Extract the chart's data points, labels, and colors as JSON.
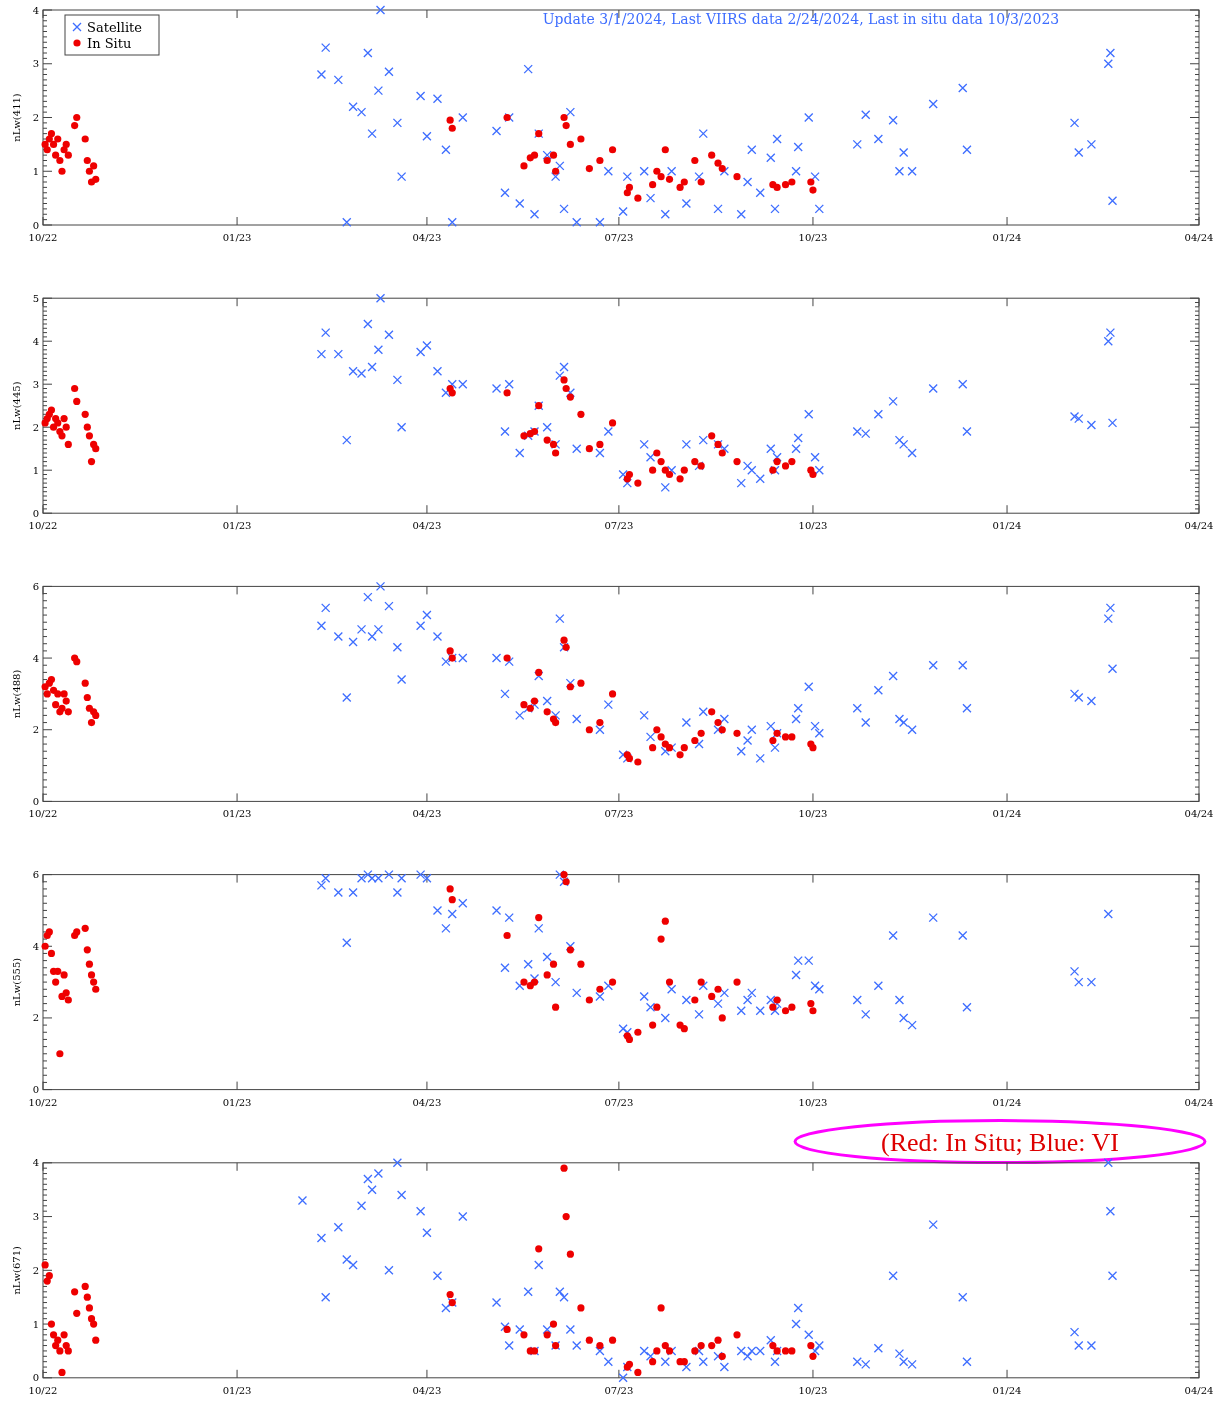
{
  "chart_data": [
    {
      "type": "scatter",
      "title": "Update 3/1/2024, Last VIIRS data 2/24/2024, Last in situ data 10/3/2023",
      "ylabel": "nLw(411)",
      "legend": "top left",
      "xlim": [
        "2022-10-01",
        "2024-04-01"
      ],
      "xticks": [
        {
          "value": "2022-10-01",
          "label": "10/22"
        },
        {
          "value": "2023-01-01",
          "label": "01/23"
        },
        {
          "value": "2023-04-01",
          "label": "04/23"
        },
        {
          "value": "2023-07-01",
          "label": "07/23"
        },
        {
          "value": "2023-10-01",
          "label": "10/23"
        },
        {
          "value": "2024-01-01",
          "label": "01/24"
        },
        {
          "value": "2024-04-01",
          "label": "04/24"
        }
      ],
      "ylim": [
        0,
        4
      ],
      "yticks": [
        0,
        1,
        2,
        3,
        4
      ],
      "series": [
        {
          "name": "Satellite",
          "color": "#3d6dff",
          "marker": "cross",
          "x": [
            "2023-02-10",
            "2023-02-12",
            "2023-02-18",
            "2023-02-22",
            "2023-02-25",
            "2023-03-01",
            "2023-03-04",
            "2023-03-06",
            "2023-03-09",
            "2023-03-10",
            "2023-03-14",
            "2023-03-18",
            "2023-03-20",
            "2023-03-29",
            "2023-04-01",
            "2023-04-06",
            "2023-04-10",
            "2023-04-13",
            "2023-04-18",
            "2023-05-04",
            "2023-05-08",
            "2023-05-10",
            "2023-05-15",
            "2023-05-19",
            "2023-05-22",
            "2023-05-24",
            "2023-05-28",
            "2023-06-01",
            "2023-06-03",
            "2023-06-05",
            "2023-06-08",
            "2023-06-11",
            "2023-06-22",
            "2023-06-26",
            "2023-07-03",
            "2023-07-05",
            "2023-07-13",
            "2023-07-16",
            "2023-07-23",
            "2023-07-26",
            "2023-08-02",
            "2023-08-08",
            "2023-08-10",
            "2023-08-17",
            "2023-08-20",
            "2023-08-28",
            "2023-08-31",
            "2023-09-02",
            "2023-09-06",
            "2023-09-11",
            "2023-09-13",
            "2023-09-14",
            "2023-09-23",
            "2023-09-24",
            "2023-09-29",
            "2023-10-02",
            "2023-10-04",
            "2023-10-22",
            "2023-10-26",
            "2023-11-01",
            "2023-11-08",
            "2023-11-11",
            "2023-11-13",
            "2023-11-17",
            "2023-11-27",
            "2023-12-11",
            "2023-12-13",
            "2024-02-02",
            "2024-02-04",
            "2024-02-10",
            "2024-02-18",
            "2024-02-19",
            "2024-02-20"
          ],
          "values": [
            2.8,
            3.3,
            2.7,
            0.05,
            2.2,
            2.1,
            3.2,
            1.7,
            2.5,
            4.0,
            2.85,
            1.9,
            0.9,
            2.4,
            1.65,
            2.35,
            1.4,
            0.05,
            2.0,
            1.75,
            0.6,
            2.0,
            0.4,
            2.9,
            0.2,
            1.7,
            1.3,
            0.9,
            1.1,
            0.3,
            2.1,
            0.05,
            0.05,
            1.0,
            0.25,
            0.9,
            1.0,
            0.5,
            0.2,
            1.0,
            0.4,
            0.9,
            1.7,
            0.3,
            1.0,
            0.2,
            0.8,
            1.4,
            0.6,
            1.25,
            0.3,
            1.6,
            1.0,
            1.45,
            2.0,
            0.9,
            0.3,
            1.5,
            2.05,
            1.6,
            1.95,
            1.0,
            1.35,
            1.0,
            2.25,
            2.55,
            1.4,
            1.9,
            1.35,
            1.5,
            3.0,
            3.2,
            0.45
          ]
        },
        {
          "name": "In Situ",
          "color": "#ee0000",
          "marker": "circle",
          "x": [
            "2022-10-02",
            "2022-10-03",
            "2022-10-04",
            "2022-10-05",
            "2022-10-06",
            "2022-10-07",
            "2022-10-08",
            "2022-10-09",
            "2022-10-10",
            "2022-10-11",
            "2022-10-12",
            "2022-10-13",
            "2022-10-16",
            "2022-10-17",
            "2022-10-21",
            "2022-10-22",
            "2022-10-23",
            "2022-10-24",
            "2022-10-25",
            "2022-10-26",
            "2023-04-12",
            "2023-04-13",
            "2023-05-09",
            "2023-05-17",
            "2023-05-20",
            "2023-05-22",
            "2023-05-24",
            "2023-05-28",
            "2023-05-31",
            "2023-06-01",
            "2023-06-05",
            "2023-06-06",
            "2023-06-08",
            "2023-06-13",
            "2023-06-17",
            "2023-06-22",
            "2023-06-28",
            "2023-07-05",
            "2023-07-06",
            "2023-07-10",
            "2023-07-17",
            "2023-07-19",
            "2023-07-21",
            "2023-07-23",
            "2023-07-25",
            "2023-07-30",
            "2023-08-01",
            "2023-08-06",
            "2023-08-09",
            "2023-08-14",
            "2023-08-17",
            "2023-08-19",
            "2023-08-26",
            "2023-09-12",
            "2023-09-14",
            "2023-09-18",
            "2023-09-21",
            "2023-09-30",
            "2023-10-01"
          ],
          "values": [
            1.5,
            1.4,
            1.6,
            1.7,
            1.5,
            1.3,
            1.6,
            1.2,
            1.0,
            1.4,
            1.5,
            1.3,
            1.85,
            2.0,
            1.6,
            1.2,
            1.0,
            0.8,
            1.1,
            0.85,
            1.95,
            1.8,
            2.0,
            1.1,
            1.25,
            1.3,
            1.7,
            1.2,
            1.3,
            1.0,
            2.0,
            1.85,
            1.5,
            1.6,
            1.05,
            1.2,
            1.4,
            0.6,
            0.7,
            0.5,
            0.75,
            1.0,
            0.9,
            1.4,
            0.85,
            0.7,
            0.8,
            1.2,
            0.8,
            1.3,
            1.15,
            1.05,
            0.9,
            0.75,
            0.7,
            0.75,
            0.8,
            0.8,
            0.65
          ]
        }
      ]
    },
    {
      "type": "scatter",
      "ylabel": "nLw(445)",
      "xlim": [
        "2022-10-01",
        "2024-04-01"
      ],
      "xticks": [
        {
          "value": "2022-10-01",
          "label": "10/22"
        },
        {
          "value": "2023-01-01",
          "label": "01/23"
        },
        {
          "value": "2023-04-01",
          "label": "04/23"
        },
        {
          "value": "2023-07-01",
          "label": "07/23"
        },
        {
          "value": "2023-10-01",
          "label": "10/23"
        },
        {
          "value": "2024-01-01",
          "label": "01/24"
        },
        {
          "value": "2024-04-01",
          "label": "04/24"
        }
      ],
      "ylim": [
        0,
        5
      ],
      "yticks": [
        0,
        1,
        2,
        3,
        4,
        5
      ],
      "series": [
        {
          "color": "#3d6dff",
          "marker": "cross",
          "x": [
            "2023-02-10",
            "2023-02-12",
            "2023-02-18",
            "2023-02-22",
            "2023-02-25",
            "2023-03-01",
            "2023-03-04",
            "2023-03-06",
            "2023-03-09",
            "2023-03-10",
            "2023-03-14",
            "2023-03-18",
            "2023-03-20",
            "2023-03-29",
            "2023-04-01",
            "2023-04-06",
            "2023-04-10",
            "2023-04-13",
            "2023-04-18",
            "2023-05-04",
            "2023-05-08",
            "2023-05-10",
            "2023-05-15",
            "2023-05-19",
            "2023-05-22",
            "2023-05-24",
            "2023-05-28",
            "2023-06-01",
            "2023-06-03",
            "2023-06-05",
            "2023-06-08",
            "2023-06-11",
            "2023-06-22",
            "2023-06-26",
            "2023-07-03",
            "2023-07-05",
            "2023-07-13",
            "2023-07-16",
            "2023-07-23",
            "2023-07-26",
            "2023-08-02",
            "2023-08-08",
            "2023-08-10",
            "2023-08-17",
            "2023-08-20",
            "2023-08-28",
            "2023-08-31",
            "2023-09-02",
            "2023-09-06",
            "2023-09-11",
            "2023-09-13",
            "2023-09-14",
            "2023-09-23",
            "2023-09-24",
            "2023-09-29",
            "2023-10-02",
            "2023-10-04",
            "2023-10-22",
            "2023-10-26",
            "2023-11-01",
            "2023-11-08",
            "2023-11-11",
            "2023-11-13",
            "2023-11-17",
            "2023-11-27",
            "2023-12-11",
            "2023-12-13",
            "2024-02-02",
            "2024-02-04",
            "2024-02-10",
            "2024-02-18",
            "2024-02-19",
            "2024-02-20"
          ],
          "values": [
            3.7,
            4.2,
            3.7,
            1.7,
            3.3,
            3.25,
            4.4,
            3.4,
            3.8,
            5.0,
            4.15,
            3.1,
            2.0,
            3.75,
            3.9,
            3.3,
            2.8,
            3.0,
            3.0,
            2.9,
            1.9,
            3.0,
            1.4,
            1.8,
            1.9,
            2.5,
            2.0,
            1.6,
            3.2,
            3.4,
            2.8,
            1.5,
            1.4,
            1.9,
            0.9,
            0.7,
            1.6,
            1.3,
            0.6,
            1.0,
            1.6,
            1.1,
            1.7,
            1.6,
            1.5,
            0.7,
            1.1,
            1.0,
            0.8,
            1.5,
            1.0,
            1.3,
            1.5,
            1.75,
            2.3,
            1.3,
            1.0,
            1.9,
            1.85,
            2.3,
            2.6,
            1.7,
            1.6,
            1.4,
            2.9,
            3.0,
            1.9,
            2.25,
            2.2,
            2.05,
            4.0,
            4.2,
            2.1
          ]
        },
        {
          "color": "#ee0000",
          "marker": "circle",
          "x": [
            "2022-10-02",
            "2022-10-03",
            "2022-10-04",
            "2022-10-05",
            "2022-10-06",
            "2022-10-07",
            "2022-10-08",
            "2022-10-09",
            "2022-10-10",
            "2022-10-11",
            "2022-10-12",
            "2022-10-13",
            "2022-10-16",
            "2022-10-17",
            "2022-10-21",
            "2022-10-22",
            "2022-10-23",
            "2022-10-24",
            "2022-10-25",
            "2022-10-26",
            "2023-04-12",
            "2023-04-13",
            "2023-05-09",
            "2023-05-17",
            "2023-05-20",
            "2023-05-22",
            "2023-05-24",
            "2023-05-28",
            "2023-05-31",
            "2023-06-01",
            "2023-06-05",
            "2023-06-06",
            "2023-06-08",
            "2023-06-13",
            "2023-06-17",
            "2023-06-22",
            "2023-06-28",
            "2023-07-05",
            "2023-07-06",
            "2023-07-10",
            "2023-07-17",
            "2023-07-19",
            "2023-07-21",
            "2023-07-23",
            "2023-07-25",
            "2023-07-30",
            "2023-08-01",
            "2023-08-06",
            "2023-08-09",
            "2023-08-14",
            "2023-08-17",
            "2023-08-19",
            "2023-08-26",
            "2023-09-12",
            "2023-09-14",
            "2023-09-18",
            "2023-09-21",
            "2023-09-30",
            "2023-10-01"
          ],
          "values": [
            2.1,
            2.2,
            2.3,
            2.4,
            2.0,
            2.2,
            2.1,
            1.9,
            1.8,
            2.2,
            2.0,
            1.6,
            2.9,
            2.6,
            2.3,
            2.0,
            1.8,
            1.2,
            1.6,
            1.5,
            2.9,
            2.8,
            2.8,
            1.8,
            1.85,
            1.9,
            2.5,
            1.7,
            1.6,
            1.4,
            3.1,
            2.9,
            2.7,
            2.3,
            1.5,
            1.6,
            2.1,
            0.8,
            0.9,
            0.7,
            1.0,
            1.4,
            1.2,
            1.0,
            0.9,
            0.8,
            1.0,
            1.2,
            1.1,
            1.8,
            1.6,
            1.4,
            1.2,
            1.0,
            1.2,
            1.1,
            1.2,
            1.0,
            0.9
          ]
        }
      ]
    },
    {
      "type": "scatter",
      "ylabel": "nLw(488)",
      "xlim": [
        "2022-10-01",
        "2024-04-01"
      ],
      "xticks": [
        {
          "value": "2022-10-01",
          "label": "10/22"
        },
        {
          "value": "2023-01-01",
          "label": "01/23"
        },
        {
          "value": "2023-04-01",
          "label": "04/23"
        },
        {
          "value": "2023-07-01",
          "label": "07/23"
        },
        {
          "value": "2023-10-01",
          "label": "10/23"
        },
        {
          "value": "2024-01-01",
          "label": "01/24"
        },
        {
          "value": "2024-04-01",
          "label": "04/24"
        }
      ],
      "ylim": [
        0,
        6
      ],
      "yticks": [
        0,
        2,
        4,
        6
      ],
      "series": [
        {
          "color": "#3d6dff",
          "marker": "cross",
          "x": [
            "2023-02-10",
            "2023-02-12",
            "2023-02-18",
            "2023-02-22",
            "2023-02-25",
            "2023-03-01",
            "2023-03-04",
            "2023-03-06",
            "2023-03-09",
            "2023-03-10",
            "2023-03-14",
            "2023-03-18",
            "2023-03-20",
            "2023-03-29",
            "2023-04-01",
            "2023-04-06",
            "2023-04-10",
            "2023-04-13",
            "2023-04-18",
            "2023-05-04",
            "2023-05-08",
            "2023-05-10",
            "2023-05-15",
            "2023-05-19",
            "2023-05-22",
            "2023-05-24",
            "2023-05-28",
            "2023-06-01",
            "2023-06-03",
            "2023-06-05",
            "2023-06-08",
            "2023-06-11",
            "2023-06-22",
            "2023-06-26",
            "2023-07-03",
            "2023-07-05",
            "2023-07-13",
            "2023-07-16",
            "2023-07-23",
            "2023-07-26",
            "2023-08-02",
            "2023-08-08",
            "2023-08-10",
            "2023-08-17",
            "2023-08-20",
            "2023-08-28",
            "2023-08-31",
            "2023-09-02",
            "2023-09-06",
            "2023-09-11",
            "2023-09-13",
            "2023-09-14",
            "2023-09-23",
            "2023-09-24",
            "2023-09-29",
            "2023-10-02",
            "2023-10-04",
            "2023-10-22",
            "2023-10-26",
            "2023-11-01",
            "2023-11-08",
            "2023-11-11",
            "2023-11-13",
            "2023-11-17",
            "2023-11-27",
            "2023-12-11",
            "2023-12-13",
            "2024-02-02",
            "2024-02-04",
            "2024-02-10",
            "2024-02-18",
            "2024-02-19",
            "2024-02-20"
          ],
          "values": [
            4.9,
            5.4,
            4.6,
            2.9,
            4.45,
            4.8,
            5.7,
            4.6,
            4.8,
            6.0,
            5.45,
            4.3,
            3.4,
            4.9,
            5.2,
            4.6,
            3.9,
            4.0,
            4.0,
            4.0,
            3.0,
            3.9,
            2.4,
            2.6,
            2.7,
            3.5,
            2.8,
            2.4,
            5.1,
            4.3,
            3.3,
            2.3,
            2.0,
            2.7,
            1.3,
            1.2,
            2.4,
            1.8,
            1.4,
            1.5,
            2.2,
            1.6,
            2.5,
            2.0,
            2.3,
            1.4,
            1.7,
            2.0,
            1.2,
            2.1,
            1.5,
            1.9,
            2.3,
            2.6,
            3.2,
            2.1,
            1.9,
            2.6,
            2.2,
            3.1,
            3.5,
            2.3,
            2.2,
            2.0,
            3.8,
            3.8,
            2.6,
            3.0,
            2.9,
            2.8,
            5.1,
            5.4,
            3.7
          ]
        },
        {
          "color": "#ee0000",
          "marker": "circle",
          "x": [
            "2022-10-02",
            "2022-10-03",
            "2022-10-04",
            "2022-10-05",
            "2022-10-06",
            "2022-10-07",
            "2022-10-08",
            "2022-10-09",
            "2022-10-10",
            "2022-10-11",
            "2022-10-12",
            "2022-10-13",
            "2022-10-16",
            "2022-10-17",
            "2022-10-21",
            "2022-10-22",
            "2022-10-23",
            "2022-10-24",
            "2022-10-25",
            "2022-10-26",
            "2023-04-12",
            "2023-04-13",
            "2023-05-09",
            "2023-05-17",
            "2023-05-20",
            "2023-05-22",
            "2023-05-24",
            "2023-05-28",
            "2023-05-31",
            "2023-06-01",
            "2023-06-05",
            "2023-06-06",
            "2023-06-08",
            "2023-06-13",
            "2023-06-17",
            "2023-06-22",
            "2023-06-28",
            "2023-07-05",
            "2023-07-06",
            "2023-07-10",
            "2023-07-17",
            "2023-07-19",
            "2023-07-21",
            "2023-07-23",
            "2023-07-25",
            "2023-07-30",
            "2023-08-01",
            "2023-08-06",
            "2023-08-09",
            "2023-08-14",
            "2023-08-17",
            "2023-08-19",
            "2023-08-26",
            "2023-09-12",
            "2023-09-14",
            "2023-09-18",
            "2023-09-21",
            "2023-09-30",
            "2023-10-01"
          ],
          "values": [
            3.2,
            3.0,
            3.3,
            3.4,
            3.1,
            2.7,
            3.0,
            2.5,
            2.6,
            3.0,
            2.8,
            2.5,
            4.0,
            3.9,
            3.3,
            2.9,
            2.6,
            2.2,
            2.5,
            2.4,
            4.2,
            4.0,
            4.0,
            2.7,
            2.6,
            2.8,
            3.6,
            2.5,
            2.3,
            2.2,
            4.5,
            4.3,
            3.2,
            3.3,
            2.0,
            2.2,
            3.0,
            1.3,
            1.2,
            1.1,
            1.5,
            2.0,
            1.8,
            1.6,
            1.5,
            1.3,
            1.5,
            1.7,
            1.9,
            2.5,
            2.2,
            2.0,
            1.9,
            1.7,
            1.9,
            1.8,
            1.8,
            1.6,
            1.5
          ]
        }
      ]
    },
    {
      "type": "scatter",
      "ylabel": "nLw(555)",
      "annotations": [
        "(Red: In Situ; Blue: VI"
      ],
      "xlim": [
        "2022-10-01",
        "2024-04-01"
      ],
      "xticks": [
        {
          "value": "2022-10-01",
          "label": "10/22"
        },
        {
          "value": "2023-01-01",
          "label": "01/23"
        },
        {
          "value": "2023-04-01",
          "label": "04/23"
        },
        {
          "value": "2023-07-01",
          "label": "07/23"
        },
        {
          "value": "2023-10-01",
          "label": "10/23"
        },
        {
          "value": "2024-01-01",
          "label": "01/24"
        },
        {
          "value": "2024-04-01",
          "label": "04/24"
        }
      ],
      "ylim": [
        0,
        6
      ],
      "yticks": [
        0,
        2,
        4,
        6
      ],
      "series": [
        {
          "color": "#3d6dff",
          "marker": "cross",
          "x": [
            "2023-02-10",
            "2023-02-12",
            "2023-02-18",
            "2023-02-22",
            "2023-02-25",
            "2023-03-01",
            "2023-03-04",
            "2023-03-06",
            "2023-03-09",
            "2023-03-14",
            "2023-03-18",
            "2023-03-20",
            "2023-03-29",
            "2023-04-01",
            "2023-04-06",
            "2023-04-10",
            "2023-04-13",
            "2023-04-18",
            "2023-05-04",
            "2023-05-08",
            "2023-05-10",
            "2023-05-15",
            "2023-05-19",
            "2023-05-22",
            "2023-05-24",
            "2023-05-28",
            "2023-06-01",
            "2023-06-03",
            "2023-06-05",
            "2023-06-08",
            "2023-06-11",
            "2023-06-22",
            "2023-06-26",
            "2023-07-03",
            "2023-07-05",
            "2023-07-13",
            "2023-07-16",
            "2023-07-23",
            "2023-07-26",
            "2023-08-02",
            "2023-08-08",
            "2023-08-10",
            "2023-08-17",
            "2023-08-20",
            "2023-08-28",
            "2023-08-31",
            "2023-09-02",
            "2023-09-06",
            "2023-09-11",
            "2023-09-13",
            "2023-09-14",
            "2023-09-23",
            "2023-09-24",
            "2023-09-29",
            "2023-10-02",
            "2023-10-04",
            "2023-10-22",
            "2023-10-26",
            "2023-11-01",
            "2023-11-08",
            "2023-11-11",
            "2023-11-13",
            "2023-11-17",
            "2023-11-27",
            "2023-12-11",
            "2023-12-13",
            "2024-02-02",
            "2024-02-04",
            "2024-02-10",
            "2024-02-18"
          ],
          "values": [
            5.7,
            5.9,
            5.5,
            4.1,
            5.5,
            5.9,
            6.0,
            5.9,
            5.9,
            6.0,
            5.5,
            5.9,
            6.0,
            5.9,
            5.0,
            4.5,
            4.9,
            5.2,
            5.0,
            3.4,
            4.8,
            2.9,
            3.5,
            3.1,
            4.5,
            3.7,
            3.0,
            6.0,
            5.8,
            4.0,
            2.7,
            2.6,
            2.9,
            1.7,
            1.6,
            2.6,
            2.3,
            2.0,
            2.8,
            2.5,
            2.1,
            2.9,
            2.4,
            2.7,
            2.2,
            2.5,
            2.7,
            2.2,
            2.5,
            2.2,
            2.4,
            3.2,
            3.6,
            3.6,
            2.9,
            2.8,
            2.5,
            2.1,
            2.9,
            4.3,
            2.5,
            2.0,
            1.8,
            4.8,
            4.3,
            2.3,
            3.3,
            3.0,
            3.0,
            4.9
          ]
        },
        {
          "color": "#ee0000",
          "marker": "circle",
          "x": [
            "2022-10-02",
            "2022-10-03",
            "2022-10-04",
            "2022-10-05",
            "2022-10-06",
            "2022-10-07",
            "2022-10-08",
            "2022-10-09",
            "2022-10-10",
            "2022-10-11",
            "2022-10-12",
            "2022-10-13",
            "2022-10-16",
            "2022-10-17",
            "2022-10-21",
            "2022-10-22",
            "2022-10-23",
            "2022-10-24",
            "2022-10-25",
            "2022-10-26",
            "2023-04-12",
            "2023-04-13",
            "2023-05-09",
            "2023-05-17",
            "2023-05-20",
            "2023-05-22",
            "2023-05-24",
            "2023-05-28",
            "2023-05-31",
            "2023-06-01",
            "2023-06-05",
            "2023-06-06",
            "2023-06-08",
            "2023-06-13",
            "2023-06-17",
            "2023-06-22",
            "2023-06-28",
            "2023-07-05",
            "2023-07-06",
            "2023-07-10",
            "2023-07-17",
            "2023-07-19",
            "2023-07-21",
            "2023-07-23",
            "2023-07-25",
            "2023-07-30",
            "2023-08-01",
            "2023-08-06",
            "2023-08-09",
            "2023-08-14",
            "2023-08-17",
            "2023-08-19",
            "2023-08-26",
            "2023-09-12",
            "2023-09-14",
            "2023-09-18",
            "2023-09-21",
            "2023-09-30",
            "2023-10-01"
          ],
          "values": [
            4.0,
            4.3,
            4.4,
            3.8,
            3.3,
            3.0,
            3.3,
            1.0,
            2.6,
            3.2,
            2.7,
            2.5,
            4.3,
            4.4,
            4.5,
            3.9,
            3.5,
            3.2,
            3.0,
            2.8,
            5.6,
            5.3,
            4.3,
            3.0,
            2.9,
            3.0,
            4.8,
            3.2,
            3.5,
            2.3,
            6.0,
            5.8,
            3.9,
            3.5,
            2.5,
            2.8,
            3.0,
            1.5,
            1.4,
            1.6,
            1.8,
            2.3,
            4.2,
            4.7,
            3.0,
            1.8,
            1.7,
            2.5,
            3.0,
            2.6,
            2.8,
            2.0,
            3.0,
            2.3,
            2.5,
            2.2,
            2.3,
            2.4,
            2.2
          ]
        }
      ]
    },
    {
      "type": "scatter",
      "ylabel": "nLw(671)",
      "xlim": [
        "2022-10-01",
        "2024-04-01"
      ],
      "xticks": [
        {
          "value": "2022-10-01",
          "label": "10/22"
        },
        {
          "value": "2023-01-01",
          "label": "01/23"
        },
        {
          "value": "2023-04-01",
          "label": "04/23"
        },
        {
          "value": "2023-07-01",
          "label": "07/23"
        },
        {
          "value": "2023-10-01",
          "label": "10/23"
        },
        {
          "value": "2024-01-01",
          "label": "01/24"
        },
        {
          "value": "2024-04-01",
          "label": "04/24"
        }
      ],
      "ylim": [
        0,
        4
      ],
      "yticks": [
        0,
        1,
        2,
        3,
        4
      ],
      "series": [
        {
          "color": "#3d6dff",
          "marker": "cross",
          "x": [
            "2023-02-01",
            "2023-02-10",
            "2023-02-12",
            "2023-02-18",
            "2023-02-22",
            "2023-02-25",
            "2023-03-01",
            "2023-03-04",
            "2023-03-06",
            "2023-03-09",
            "2023-03-14",
            "2023-03-18",
            "2023-03-20",
            "2023-03-29",
            "2023-04-01",
            "2023-04-06",
            "2023-04-10",
            "2023-04-13",
            "2023-04-18",
            "2023-05-04",
            "2023-05-08",
            "2023-05-10",
            "2023-05-15",
            "2023-05-19",
            "2023-05-22",
            "2023-05-24",
            "2023-05-28",
            "2023-06-01",
            "2023-06-03",
            "2023-06-05",
            "2023-06-08",
            "2023-06-11",
            "2023-06-22",
            "2023-06-26",
            "2023-07-03",
            "2023-07-05",
            "2023-07-13",
            "2023-07-16",
            "2023-07-23",
            "2023-07-26",
            "2023-08-02",
            "2023-08-08",
            "2023-08-10",
            "2023-08-17",
            "2023-08-20",
            "2023-08-28",
            "2023-08-31",
            "2023-09-02",
            "2023-09-06",
            "2023-09-11",
            "2023-09-13",
            "2023-09-14",
            "2023-09-23",
            "2023-09-24",
            "2023-09-29",
            "2023-10-02",
            "2023-10-04",
            "2023-10-22",
            "2023-10-26",
            "2023-11-01",
            "2023-11-08",
            "2023-11-11",
            "2023-11-13",
            "2023-11-17",
            "2023-11-27",
            "2023-12-11",
            "2023-12-13",
            "2024-02-02",
            "2024-02-04",
            "2024-02-10",
            "2024-02-18",
            "2024-02-19",
            "2024-02-20"
          ],
          "values": [
            3.3,
            2.6,
            1.5,
            2.8,
            2.2,
            2.1,
            3.2,
            3.7,
            3.5,
            3.8,
            2.0,
            4.0,
            3.4,
            3.1,
            2.7,
            1.9,
            1.3,
            1.4,
            3.0,
            1.4,
            0.95,
            0.6,
            0.9,
            1.6,
            0.5,
            2.1,
            0.9,
            0.6,
            1.6,
            1.5,
            0.9,
            0.6,
            0.5,
            0.3,
            0.0,
            0.2,
            0.5,
            0.4,
            0.3,
            0.5,
            0.2,
            0.5,
            0.3,
            0.4,
            0.2,
            0.5,
            0.4,
            0.5,
            0.5,
            0.7,
            0.3,
            0.5,
            1.0,
            1.3,
            0.8,
            0.5,
            0.6,
            0.3,
            0.25,
            0.55,
            1.9,
            0.45,
            0.3,
            0.25,
            2.85,
            1.5,
            0.3,
            0.85,
            0.6,
            0.6,
            4.0,
            3.1,
            1.9
          ]
        },
        {
          "color": "#ee0000",
          "marker": "circle",
          "x": [
            "2022-10-02",
            "2022-10-03",
            "2022-10-04",
            "2022-10-05",
            "2022-10-06",
            "2022-10-07",
            "2022-10-08",
            "2022-10-09",
            "2022-10-10",
            "2022-10-11",
            "2022-10-12",
            "2022-10-13",
            "2022-10-16",
            "2022-10-17",
            "2022-10-21",
            "2022-10-22",
            "2022-10-23",
            "2022-10-24",
            "2022-10-25",
            "2022-10-26",
            "2023-04-12",
            "2023-04-13",
            "2023-05-09",
            "2023-05-17",
            "2023-05-20",
            "2023-05-22",
            "2023-05-24",
            "2023-05-28",
            "2023-05-31",
            "2023-06-01",
            "2023-06-05",
            "2023-06-06",
            "2023-06-08",
            "2023-06-13",
            "2023-06-17",
            "2023-06-22",
            "2023-06-28",
            "2023-07-05",
            "2023-07-06",
            "2023-07-10",
            "2023-07-17",
            "2023-07-19",
            "2023-07-21",
            "2023-07-23",
            "2023-07-25",
            "2023-07-30",
            "2023-08-01",
            "2023-08-06",
            "2023-08-09",
            "2023-08-14",
            "2023-08-17",
            "2023-08-19",
            "2023-08-26",
            "2023-09-12",
            "2023-09-14",
            "2023-09-18",
            "2023-09-21",
            "2023-09-30",
            "2023-10-01"
          ],
          "values": [
            2.1,
            1.8,
            1.9,
            1.0,
            0.8,
            0.6,
            0.7,
            0.5,
            0.1,
            0.8,
            0.6,
            0.5,
            1.6,
            1.2,
            1.7,
            1.5,
            1.3,
            1.1,
            1.0,
            0.7,
            1.55,
            1.4,
            0.9,
            0.8,
            0.5,
            0.5,
            2.4,
            0.8,
            1.0,
            0.6,
            3.9,
            3.0,
            2.3,
            1.3,
            0.7,
            0.6,
            0.7,
            0.2,
            0.25,
            0.1,
            0.3,
            0.5,
            1.3,
            0.6,
            0.5,
            0.3,
            0.3,
            0.5,
            0.6,
            0.6,
            0.7,
            0.4,
            0.8,
            0.6,
            0.5,
            0.5,
            0.5,
            0.6,
            0.4
          ]
        }
      ]
    }
  ]
}
